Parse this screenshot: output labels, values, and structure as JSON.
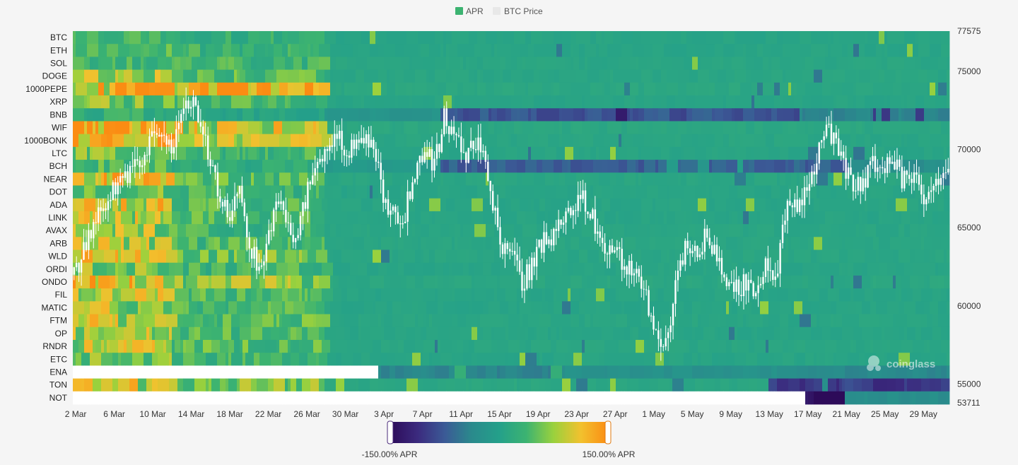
{
  "legend": {
    "apr_label": "APR",
    "apr_color": "#3cb371",
    "price_label": "BTC Price",
    "price_color": "#e8e8e8"
  },
  "watermark": "coinglass",
  "colorbar": {
    "min_label": "-150.00% APR",
    "max_label": "150.00% APR",
    "min_value": -150,
    "max_value": 150,
    "stops": [
      "#2d0b59",
      "#3b2a7e",
      "#3b5a96",
      "#2a8a8c",
      "#24a08a",
      "#3cb371",
      "#9ad13d",
      "#f2c12e",
      "#fb8c13"
    ]
  },
  "chart_data": {
    "type": "heatmap",
    "title": "",
    "series_overlay": "BTC Price (candlestick)",
    "rows": [
      "BTC",
      "ETH",
      "SOL",
      "DOGE",
      "1000PEPE",
      "XRP",
      "BNB",
      "WIF",
      "1000BONK",
      "LTC",
      "BCH",
      "NEAR",
      "DOT",
      "ADA",
      "LINK",
      "AVAX",
      "ARB",
      "WLD",
      "ORDI",
      "ONDO",
      "FIL",
      "MATIC",
      "FTM",
      "OP",
      "RNDR",
      "ETC",
      "ENA",
      "TON",
      "NOT"
    ],
    "x_ticks": [
      "2 Mar",
      "6 Mar",
      "10 Mar",
      "14 Mar",
      "18 Mar",
      "22 Mar",
      "26 Mar",
      "30 Mar",
      "3 Apr",
      "7 Apr",
      "11 Apr",
      "15 Apr",
      "19 Apr",
      "23 Apr",
      "27 Apr",
      "1 May",
      "5 May",
      "9 May",
      "13 May",
      "17 May",
      "21 May",
      "25 May",
      "29 May"
    ],
    "y_right_ticks": [
      "77575",
      "75000",
      "70000",
      "65000",
      "60000",
      "55000",
      "53711"
    ],
    "y_right_values": [
      77575,
      75000,
      70000,
      65000,
      60000,
      55000,
      53711
    ],
    "price_range": [
      53711,
      77575
    ],
    "days": 91,
    "btc_price_daily": [
      62000,
      63500,
      65500,
      66500,
      67500,
      68000,
      68500,
      69500,
      70500,
      71500,
      70000,
      72500,
      73000,
      72000,
      69000,
      67000,
      66000,
      68000,
      64000,
      62500,
      64500,
      67000,
      65000,
      64500,
      67500,
      69000,
      70000,
      71000,
      69500,
      70500,
      71000,
      69500,
      66500,
      65500,
      66000,
      68500,
      70000,
      69000,
      72000,
      71000,
      69500,
      70500,
      70000,
      66500,
      64000,
      63500,
      61500,
      62500,
      64000,
      64500,
      65000,
      66500,
      67000,
      66000,
      64000,
      63500,
      63000,
      62500,
      62000,
      60000,
      57500,
      58500,
      62000,
      64000,
      63500,
      64500,
      63000,
      61500,
      61000,
      61500,
      60500,
      62500,
      61500,
      66000,
      66500,
      67000,
      69000,
      71500,
      70500,
      69000,
      68000,
      68000,
      69000,
      68500,
      69500,
      68000,
      68500,
      67000,
      67500,
      68500,
      68000
    ],
    "apr_default": 11,
    "apr_profiles": {
      "BTC": [
        [
          0,
          40
        ],
        [
          10,
          25
        ],
        [
          26,
          8
        ]
      ],
      "ETH": [
        [
          0,
          45
        ],
        [
          10,
          30
        ],
        [
          26,
          8
        ]
      ],
      "SOL": [
        [
          0,
          40
        ],
        [
          10,
          35
        ],
        [
          26,
          10
        ]
      ],
      "DOGE": [
        [
          0,
          90
        ],
        [
          10,
          45
        ],
        [
          26,
          10
        ]
      ],
      "1000PEPE": [
        [
          0,
          110
        ],
        [
          10,
          120
        ],
        [
          26,
          12
        ]
      ],
      "XRP": [
        [
          0,
          60
        ],
        [
          10,
          40
        ],
        [
          26,
          8
        ]
      ],
      "BNB": [
        [
          0,
          25
        ],
        [
          10,
          8
        ],
        [
          26,
          -20
        ],
        [
          38,
          -80
        ],
        [
          75,
          -40
        ]
      ],
      "WIF": [
        [
          0,
          140
        ],
        [
          10,
          90
        ],
        [
          26,
          12
        ]
      ],
      "1000BONK": [
        [
          0,
          140
        ],
        [
          10,
          75
        ],
        [
          26,
          10
        ]
      ],
      "LTC": [
        [
          0,
          60
        ],
        [
          10,
          35
        ],
        [
          26,
          8
        ]
      ],
      "BCH": [
        [
          0,
          45
        ],
        [
          10,
          20
        ],
        [
          26,
          -10
        ],
        [
          38,
          -70
        ],
        [
          80,
          -30
        ]
      ],
      "NEAR": [
        [
          0,
          120
        ],
        [
          10,
          45
        ],
        [
          26,
          10
        ]
      ],
      "DOT": [
        [
          0,
          60
        ],
        [
          10,
          35
        ],
        [
          26,
          8
        ]
      ],
      "ADA": [
        [
          0,
          100
        ],
        [
          10,
          40
        ],
        [
          26,
          8
        ]
      ],
      "LINK": [
        [
          0,
          85
        ],
        [
          10,
          40
        ],
        [
          26,
          8
        ]
      ],
      "AVAX": [
        [
          0,
          75
        ],
        [
          10,
          35
        ],
        [
          26,
          10
        ]
      ],
      "ARB": [
        [
          0,
          80
        ],
        [
          10,
          40
        ],
        [
          26,
          10
        ]
      ],
      "WLD": [
        [
          0,
          90
        ],
        [
          10,
          55
        ],
        [
          26,
          10
        ]
      ],
      "ORDI": [
        [
          0,
          75
        ],
        [
          10,
          35
        ],
        [
          26,
          8
        ]
      ],
      "ONDO": [
        [
          0,
          115
        ],
        [
          10,
          65
        ],
        [
          26,
          12
        ]
      ],
      "FIL": [
        [
          0,
          80
        ],
        [
          10,
          40
        ],
        [
          26,
          8
        ]
      ],
      "MATIC": [
        [
          0,
          80
        ],
        [
          10,
          40
        ],
        [
          26,
          8
        ]
      ],
      "FTM": [
        [
          0,
          85
        ],
        [
          10,
          45
        ],
        [
          26,
          10
        ]
      ],
      "OP": [
        [
          0,
          75
        ],
        [
          10,
          40
        ],
        [
          26,
          8
        ]
      ],
      "RNDR": [
        [
          0,
          80
        ],
        [
          10,
          45
        ],
        [
          26,
          10
        ]
      ],
      "ETC": [
        [
          0,
          60
        ],
        [
          10,
          35
        ],
        [
          26,
          8
        ]
      ],
      "ENA": [
        [
          31,
          -40
        ],
        [
          50,
          -25
        ],
        [
          75,
          -35
        ]
      ],
      "TON": [
        [
          0,
          90
        ],
        [
          10,
          60
        ],
        [
          26,
          12
        ],
        [
          72,
          -100
        ]
      ],
      "NOT": [
        [
          76,
          -150
        ],
        [
          80,
          -30
        ]
      ]
    },
    "missing_until_day": {
      "ENA": 31,
      "NOT": 76
    }
  }
}
